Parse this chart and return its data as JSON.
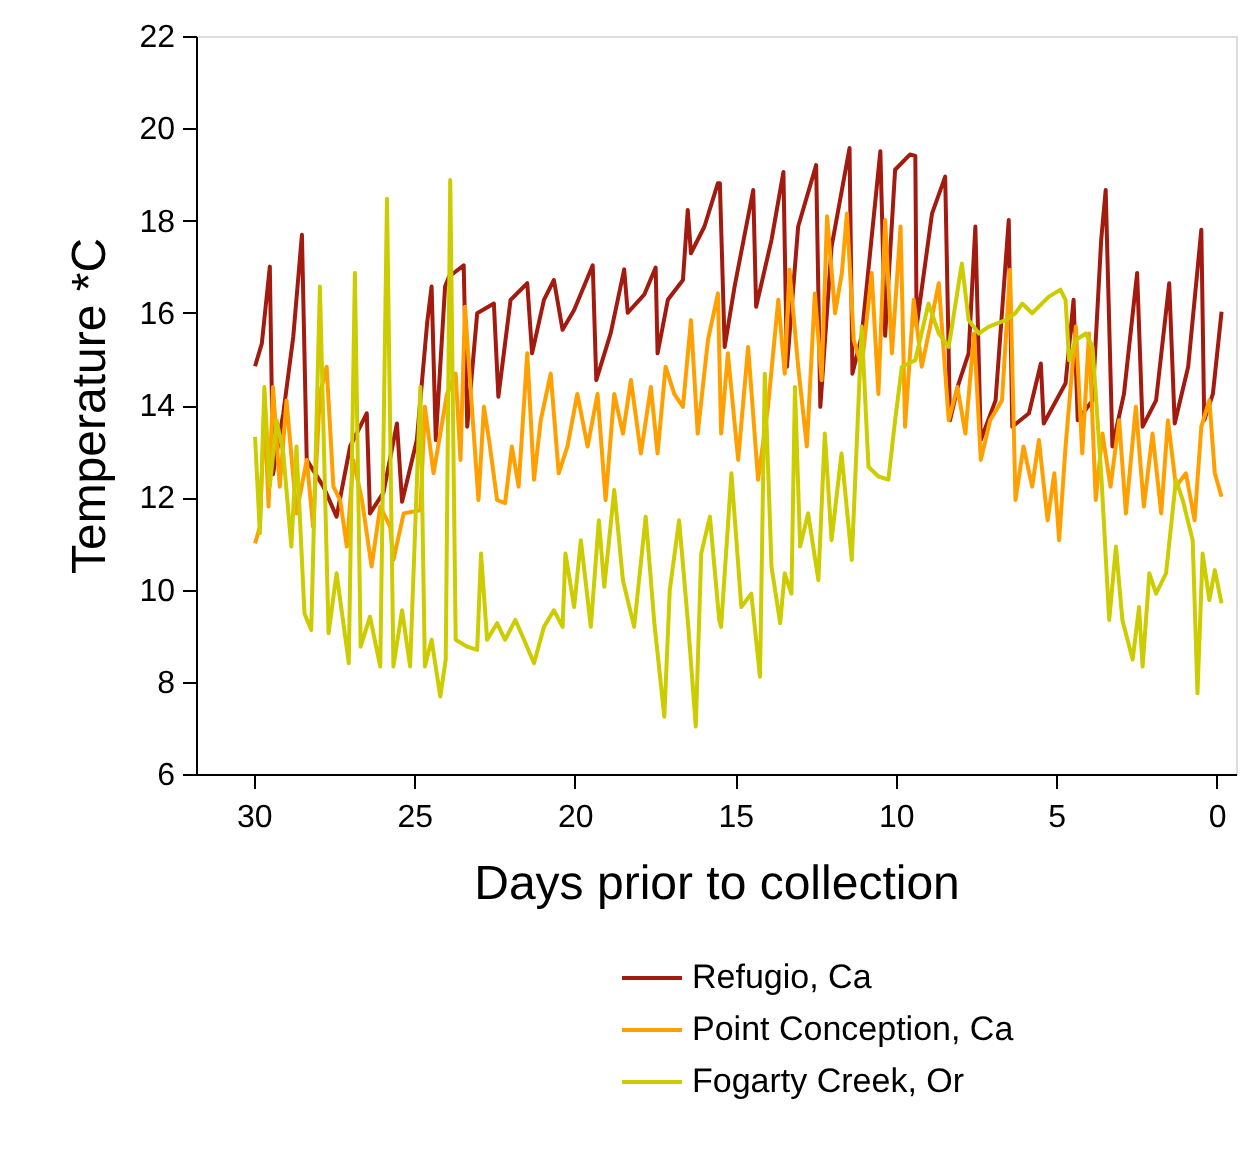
{
  "chart_data": {
    "type": "line",
    "xlabel": "Days prior to collection",
    "ylabel": "Temperature *C",
    "xlim": [
      31.8,
      -0.6
    ],
    "xticks": [
      30,
      25,
      20,
      15,
      10,
      5,
      0
    ],
    "ylim": [
      6,
      22
    ],
    "yticks": [
      6,
      8,
      10,
      12,
      14,
      16,
      18,
      20,
      22
    ],
    "grid": false,
    "legend": "bottom right",
    "marker": "none",
    "line_style": "solid",
    "series": [
      {
        "name": "Refugio, Ca",
        "color": "#a31a0f",
        "x": [
          29.96,
          29.75,
          29.5,
          29.4,
          29.08,
          28.77,
          28.5,
          28.35,
          27.83,
          27.42,
          27.0,
          26.48,
          26.38,
          25.96,
          25.54,
          25.38,
          24.92,
          24.6,
          24.46,
          24.33,
          24.04,
          23.92,
          23.46,
          23.35,
          23.04,
          22.52,
          22.38,
          22.0,
          21.48,
          21.33,
          20.96,
          20.65,
          20.38,
          20.02,
          19.44,
          19.33,
          18.88,
          18.46,
          18.35,
          17.83,
          17.48,
          17.42,
          17.1,
          16.63,
          16.48,
          16.38,
          15.96,
          15.54,
          15.48,
          15.33,
          15.02,
          14.44,
          14.35,
          13.87,
          13.5,
          13.39,
          13.04,
          12.48,
          12.35,
          12.0,
          11.44,
          11.35,
          11.06,
          10.48,
          10.33,
          10.02,
          9.56,
          9.39,
          9.35,
          8.87,
          8.46,
          8.31,
          8.04,
          7.73,
          7.52,
          7.35,
          6.89,
          6.48,
          6.37,
          5.85,
          5.48,
          5.39,
          4.71,
          4.46,
          4.33,
          3.87,
          3.6,
          3.46,
          3.25,
          2.89,
          2.48,
          2.31,
          1.89,
          1.48,
          1.31,
          0.89,
          0.48,
          0.39,
          0.12,
          -0.15
        ],
        "values": [
          14.84,
          15.33,
          17.0,
          12.5,
          13.82,
          15.48,
          17.69,
          12.81,
          12.23,
          11.58,
          13.1,
          13.82,
          11.65,
          12.1,
          13.6,
          11.9,
          13.24,
          15.77,
          16.57,
          13.24,
          16.57,
          16.78,
          17.03,
          13.53,
          15.99,
          16.2,
          14.18,
          16.28,
          16.64,
          15.12,
          16.28,
          16.71,
          15.63,
          16.06,
          17.03,
          14.54,
          15.56,
          16.94,
          16.0,
          16.4,
          16.98,
          15.12,
          16.28,
          16.71,
          18.23,
          17.29,
          17.87,
          18.81,
          18.81,
          15.26,
          16.57,
          18.66,
          16.13,
          17.58,
          19.05,
          14.83,
          17.87,
          19.2,
          13.96,
          17.43,
          19.57,
          14.68,
          15.5,
          19.5,
          15.5,
          19.1,
          19.43,
          19.4,
          15.7,
          18.15,
          18.95,
          13.67,
          14.47,
          15.12,
          17.87,
          13.24,
          14.1,
          18.01,
          13.53,
          13.82,
          14.9,
          13.6,
          14.47,
          16.28,
          13.67,
          14.1,
          17.58,
          18.66,
          13.1,
          14.24,
          16.86,
          13.53,
          14.1,
          16.64,
          13.6,
          14.83,
          17.8,
          13.67,
          14.24,
          16.02
        ]
      },
      {
        "name": "Point Conception, Ca",
        "color": "#ffa000",
        "x": [
          29.96,
          29.81,
          29.67,
          29.54,
          29.4,
          29.19,
          28.98,
          28.67,
          28.35,
          28.15,
          27.94,
          27.73,
          27.52,
          27.31,
          27.1,
          26.9,
          26.63,
          26.33,
          26.06,
          25.75,
          25.65,
          25.33,
          24.81,
          24.67,
          24.4,
          24.19,
          23.98,
          23.71,
          23.56,
          23.42,
          23.25,
          23.0,
          22.83,
          22.67,
          22.42,
          22.17,
          21.96,
          21.75,
          21.48,
          21.27,
          21.06,
          20.75,
          20.5,
          20.23,
          19.92,
          19.6,
          19.29,
          19.04,
          18.77,
          18.5,
          18.25,
          17.94,
          17.63,
          17.42,
          17.17,
          16.9,
          16.63,
          16.38,
          16.17,
          15.85,
          15.54,
          15.44,
          15.23,
          14.91,
          14.6,
          14.29,
          13.98,
          13.66,
          13.46,
          13.31,
          13.04,
          12.77,
          12.52,
          12.31,
          12.14,
          11.89,
          11.68,
          11.52,
          11.31,
          11.06,
          10.75,
          10.54,
          10.33,
          10.12,
          9.85,
          9.71,
          9.44,
          9.19,
          8.93,
          8.66,
          8.35,
          8.08,
          7.83,
          7.56,
          7.35,
          7.06,
          6.69,
          6.44,
          6.27,
          6.02,
          5.75,
          5.54,
          5.27,
          5.06,
          4.91,
          4.71,
          4.39,
          4.19,
          3.98,
          3.77,
          3.56,
          3.31,
          3.04,
          2.83,
          2.52,
          2.27,
          2.0,
          1.73,
          1.52,
          1.27,
          0.96,
          0.69,
          0.48,
          0.23,
          0.06,
          -0.15
        ],
        "values": [
          11.0,
          11.36,
          13.96,
          11.8,
          14.39,
          12.23,
          14.1,
          11.65,
          12.81,
          11.36,
          14.24,
          14.83,
          12.23,
          11.94,
          10.93,
          12.81,
          11.94,
          10.5,
          11.8,
          11.36,
          10.64,
          11.65,
          11.72,
          13.96,
          12.52,
          13.38,
          14.24,
          14.68,
          12.81,
          16.13,
          14.39,
          11.94,
          13.96,
          13.24,
          11.94,
          11.87,
          13.1,
          12.23,
          15.12,
          12.38,
          13.67,
          14.68,
          12.52,
          13.1,
          14.24,
          13.1,
          14.24,
          11.94,
          14.24,
          13.38,
          14.54,
          12.95,
          14.39,
          12.95,
          14.83,
          14.24,
          13.96,
          15.84,
          13.38,
          15.41,
          16.42,
          13.38,
          15.12,
          12.81,
          15.26,
          12.38,
          13.96,
          16.28,
          14.68,
          16.93,
          14.83,
          13.1,
          16.42,
          14.54,
          18.09,
          15.99,
          16.86,
          18.15,
          15.41,
          14.83,
          16.86,
          14.24,
          18.01,
          15.12,
          17.87,
          13.53,
          16.28,
          14.83,
          15.7,
          16.64,
          13.67,
          14.39,
          13.38,
          15.55,
          12.81,
          13.67,
          14.1,
          16.93,
          11.94,
          13.1,
          12.23,
          13.24,
          11.5,
          12.52,
          11.07,
          13.1,
          15.7,
          12.95,
          15.55,
          11.94,
          13.38,
          12.23,
          13.67,
          11.65,
          13.96,
          11.8,
          13.38,
          11.65,
          13.67,
          12.23,
          12.52,
          11.5,
          13.53,
          14.1,
          12.52,
          12.01
        ]
      },
      {
        "name": "Fogarty Creek, Or",
        "color": "#cccc00",
        "x": [
          29.96,
          29.81,
          29.67,
          29.5,
          29.29,
          29.08,
          28.83,
          28.67,
          28.42,
          28.21,
          27.94,
          27.67,
          27.42,
          27.04,
          26.85,
          26.67,
          26.38,
          26.06,
          25.85,
          25.65,
          25.38,
          25.13,
          24.81,
          24.67,
          24.46,
          24.19,
          24.02,
          23.88,
          23.71,
          23.35,
          23.04,
          22.92,
          22.73,
          22.42,
          22.17,
          21.85,
          21.58,
          21.27,
          20.96,
          20.65,
          20.38,
          20.29,
          20.02,
          19.81,
          19.5,
          19.25,
          19.08,
          18.77,
          18.5,
          18.15,
          17.79,
          17.52,
          17.21,
          17.04,
          16.75,
          16.48,
          16.23,
          16.06,
          15.79,
          15.5,
          15.44,
          15.12,
          14.81,
          14.5,
          14.23,
          14.08,
          13.87,
          13.6,
          13.46,
          13.25,
          13.14,
          12.98,
          12.73,
          12.41,
          12.21,
          12.0,
          11.69,
          11.37,
          11.06,
          10.85,
          10.54,
          10.23,
          10.02,
          9.81,
          9.39,
          8.98,
          8.66,
          8.35,
          7.94,
          7.73,
          7.41,
          7.1,
          6.58,
          6.27,
          6.06,
          5.75,
          5.23,
          4.87,
          4.71,
          4.6,
          4.39,
          4.08,
          3.87,
          3.6,
          3.35,
          3.14,
          2.94,
          2.62,
          2.42,
          2.31,
          2.1,
          1.89,
          1.58,
          1.27,
          1.06,
          0.75,
          0.6,
          0.44,
          0.23,
          0.06,
          -0.15
        ],
        "values": [
          13.31,
          11.22,
          14.39,
          12.23,
          13.67,
          12.95,
          10.93,
          13.1,
          9.48,
          9.12,
          16.57,
          9.05,
          10.35,
          8.4,
          16.86,
          8.76,
          9.41,
          8.33,
          18.47,
          8.33,
          9.55,
          8.33,
          14.39,
          8.33,
          8.91,
          7.68,
          8.48,
          18.88,
          8.91,
          8.76,
          8.69,
          10.78,
          8.91,
          9.27,
          8.91,
          9.34,
          8.91,
          8.4,
          9.19,
          9.55,
          9.19,
          10.78,
          9.62,
          11.07,
          9.19,
          11.5,
          10.06,
          12.16,
          10.2,
          9.19,
          11.58,
          9.27,
          7.24,
          9.99,
          11.5,
          9.34,
          7.03,
          10.78,
          11.58,
          9.34,
          9.19,
          12.52,
          9.62,
          9.91,
          8.11,
          14.68,
          10.49,
          9.27,
          10.35,
          9.91,
          14.39,
          10.93,
          11.65,
          10.2,
          13.38,
          11.07,
          12.95,
          10.64,
          15.7,
          12.66,
          12.45,
          12.38,
          13.67,
          14.83,
          14.97,
          16.2,
          15.55,
          15.26,
          17.07,
          15.84,
          15.55,
          15.7,
          15.84,
          15.99,
          16.2,
          15.99,
          16.35,
          16.5,
          16.28,
          14.97,
          15.41,
          15.55,
          15.26,
          12.52,
          9.34,
          10.93,
          9.34,
          8.48,
          9.62,
          8.33,
          10.35,
          9.91,
          10.35,
          12.38,
          11.94,
          11.07,
          7.75,
          10.78,
          9.77,
          10.42,
          9.7
        ]
      }
    ]
  }
}
